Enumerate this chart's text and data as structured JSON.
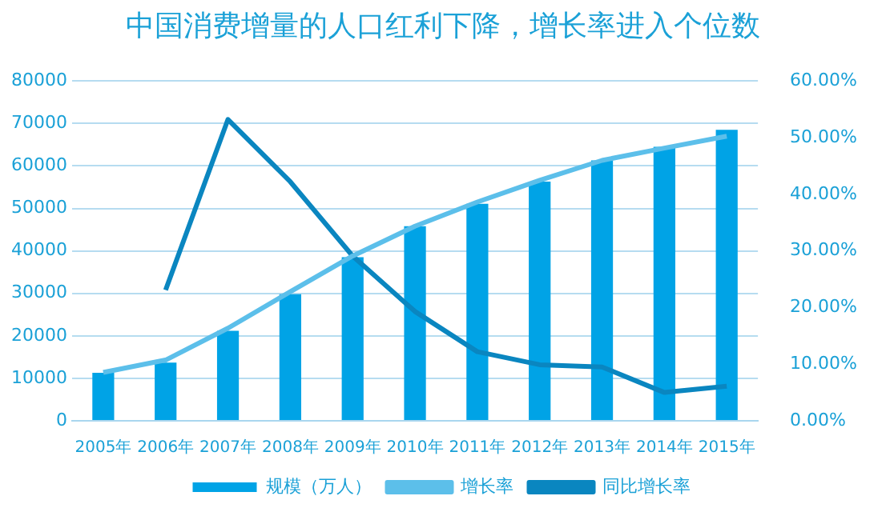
{
  "chart_data": {
    "type": "bar",
    "title": "中国消费增量的人口红利下降，增长率进入个位数",
    "categories": [
      "2005年",
      "2006年",
      "2007年",
      "2008年",
      "2009年",
      "2010年",
      "2011年",
      "2012年",
      "2013年",
      "2014年",
      "2015年"
    ],
    "series": [
      {
        "name": "规模（万人）",
        "color": "#00a3e6",
        "values": [
          11300,
          13700,
          21200,
          29800,
          38500,
          45800,
          51100,
          56300,
          61300,
          64500,
          68500
        ]
      },
      {
        "name": "增长率",
        "type": "line",
        "color": "#5cbfea",
        "values": [
          11400,
          14300,
          21800,
          30400,
          38800,
          45800,
          51500,
          56600,
          61300,
          64200,
          67000
        ]
      },
      {
        "name": "同比增长率",
        "type": "line",
        "axis": "y2",
        "color": "#0a86c0",
        "values": [
          null,
          23.1,
          53.2,
          42.2,
          29.1,
          19.3,
          12.2,
          9.9,
          9.5,
          5.0,
          6.1
        ]
      }
    ],
    "ylim": [
      0,
      80000
    ],
    "yticks": [
      0,
      10000,
      20000,
      30000,
      40000,
      50000,
      60000,
      70000,
      80000
    ],
    "y2lim": [
      0,
      60
    ],
    "y2ticks": [
      {
        "value": 0,
        "label": "0.00%"
      },
      {
        "value": 10,
        "label": "10.00%"
      },
      {
        "value": 20,
        "label": "20.00%"
      },
      {
        "value": 30,
        "label": "30.00%"
      },
      {
        "value": 40,
        "label": "40.00%"
      },
      {
        "value": 50,
        "label": "50.00%"
      },
      {
        "value": 60,
        "label": "60.00%"
      }
    ],
    "grid": "y",
    "legend": "bottom",
    "marker": "none",
    "line_style": "solid"
  }
}
